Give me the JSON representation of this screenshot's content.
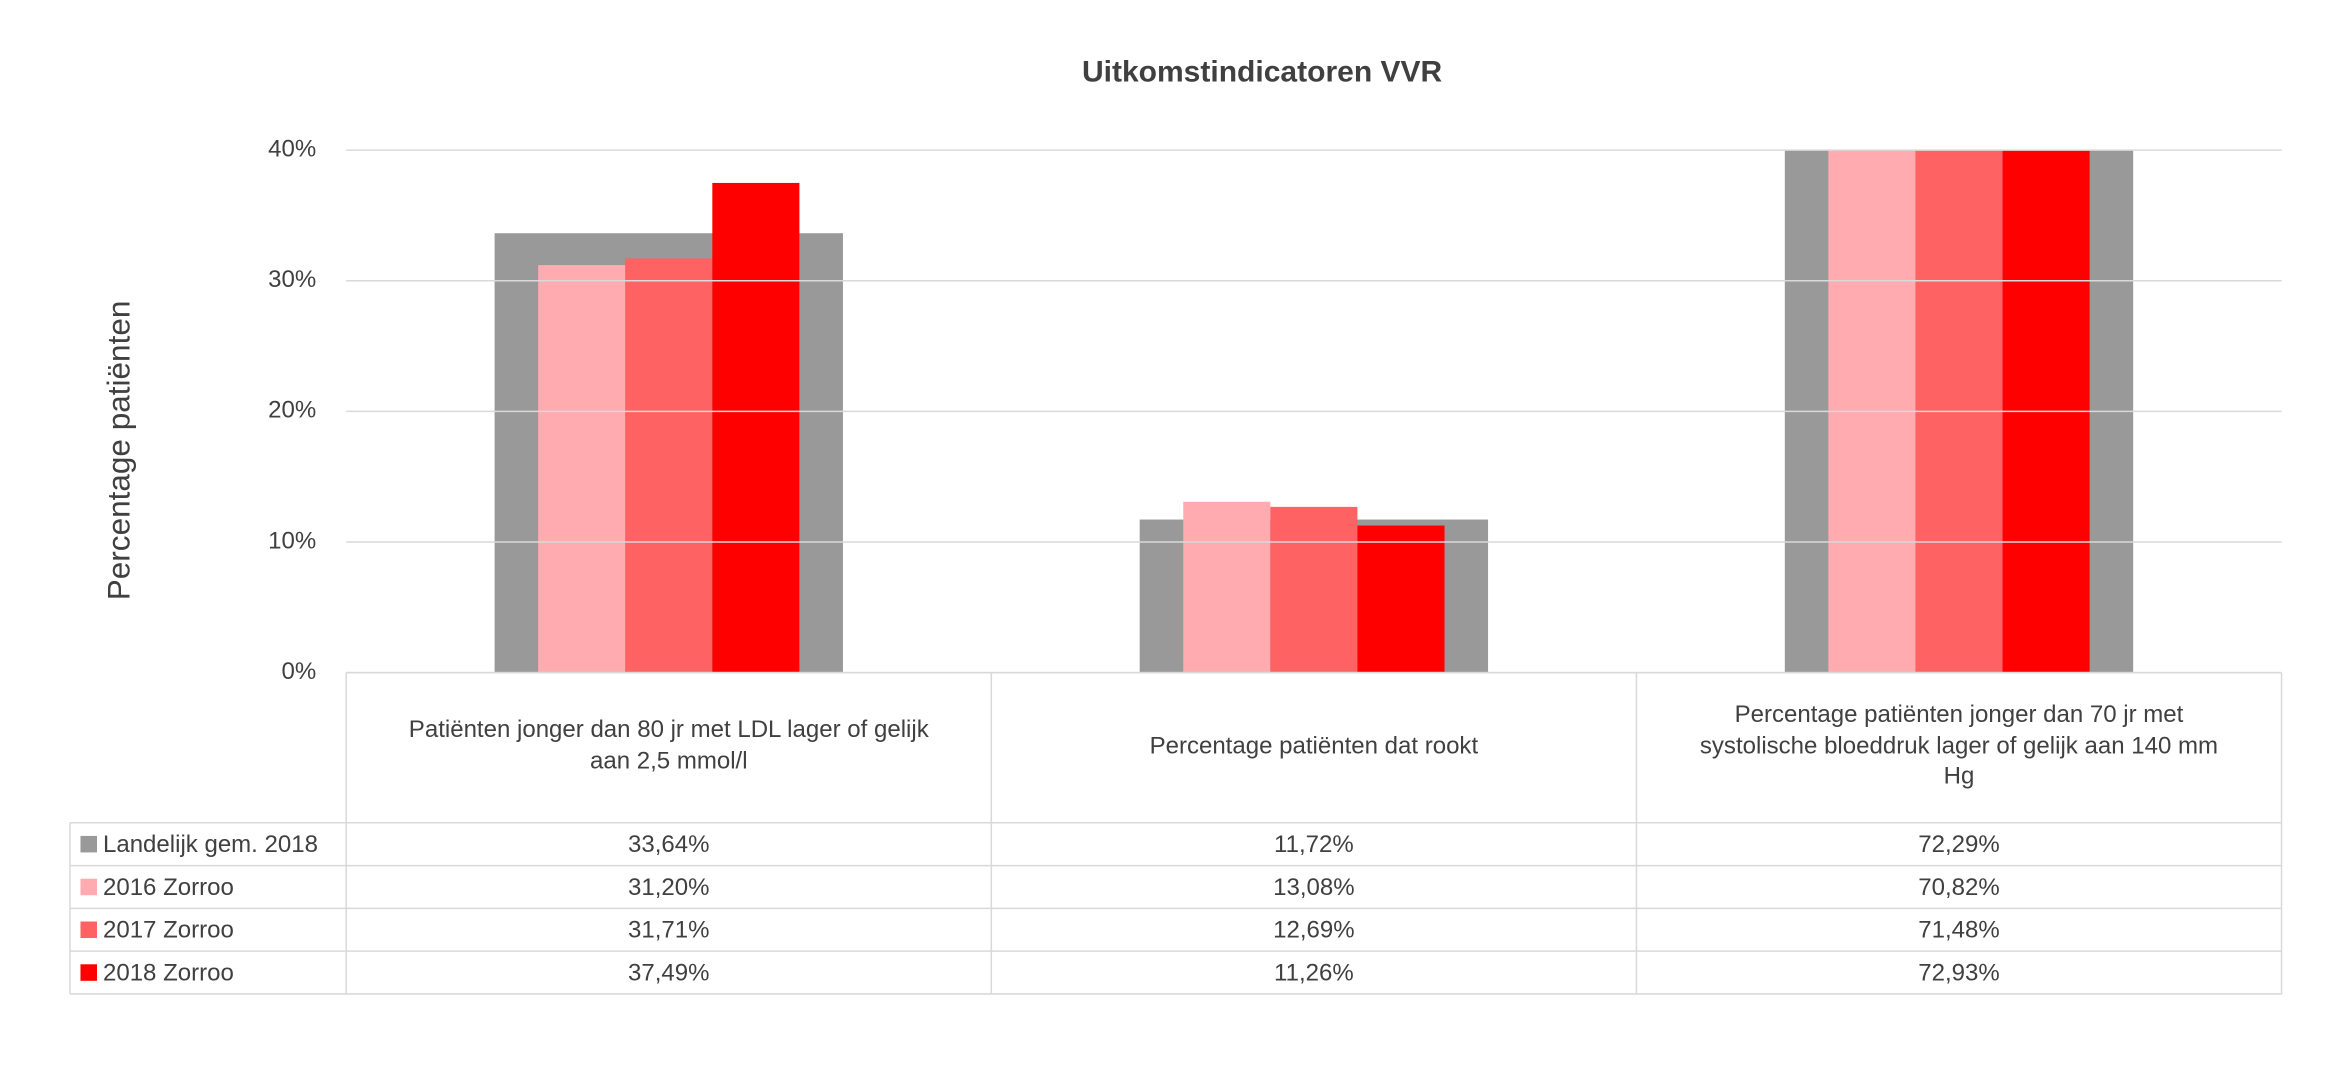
{
  "chart_data": {
    "type": "bar",
    "title": "Uitkomstindicatoren VVR",
    "y_label": "Percentage patiënten",
    "categories": [
      "Patiënten jonger dan 80 jr met LDL lager of gelijk aan 2,5 mmol/l",
      "Percentage patiënten dat rookt",
      "Percentage patiënten jonger dan 70 jr met systolische bloeddruk lager of gelijk aan 140 mm Hg"
    ],
    "series": [
      {
        "name": "Landelijk gem. 2018",
        "color": "#999999",
        "values": [
          33.64,
          11.72,
          72.29
        ],
        "value_labels": [
          "33,64%",
          "11,72%",
          "72,29%"
        ]
      },
      {
        "name": "2016 Zorroo",
        "color": "#ffabb0",
        "values": [
          31.2,
          13.08,
          70.82
        ],
        "value_labels": [
          "31,20%",
          "13,08%",
          "70,82%"
        ]
      },
      {
        "name": "2017 Zorroo",
        "color": "#ff6262",
        "values": [
          31.71,
          12.69,
          71.48
        ],
        "value_labels": [
          "31,71%",
          "12,69%",
          "71,48%"
        ]
      },
      {
        "name": "2018 Zorroo",
        "color": "#ff0000",
        "values": [
          37.49,
          11.26,
          72.93
        ],
        "value_labels": [
          "37,49%",
          "11,26%",
          "72,93%"
        ]
      }
    ],
    "ylim": [
      0,
      40
    ],
    "yticks": [
      {
        "value": 0,
        "label": "0%"
      },
      {
        "value": 10,
        "label": "10%"
      },
      {
        "value": 20,
        "label": "20%"
      },
      {
        "value": 30,
        "label": "30%"
      },
      {
        "value": 40,
        "label": "40%"
      }
    ],
    "grid": true
  }
}
